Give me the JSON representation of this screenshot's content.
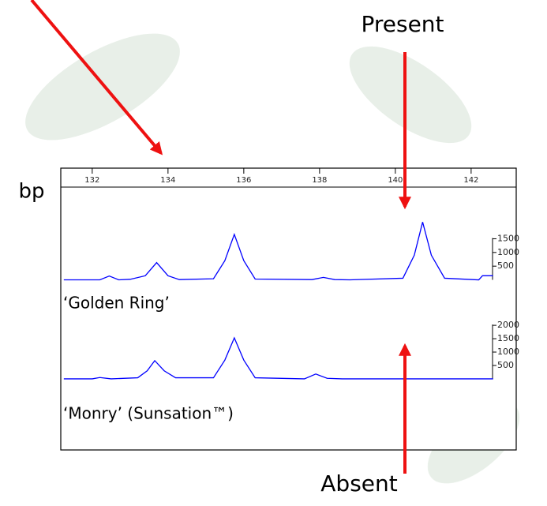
{
  "chart_data": [
    {
      "type": "line",
      "xlabel": "bp",
      "x": [
        131.25,
        132.2,
        132.45,
        132.7,
        133.0,
        133.4,
        133.7,
        134.0,
        134.3,
        135.2,
        135.5,
        135.75,
        136.0,
        136.3,
        137.8,
        138.1,
        138.4,
        138.8,
        140.2,
        140.5,
        140.72,
        140.95,
        141.3,
        142.2,
        142.3,
        142.58
      ],
      "series": [
        {
          "name": "‘Golden Ring’",
          "color": "#0000ff",
          "values": [
            0,
            0,
            140,
            0,
            20,
            150,
            630,
            150,
            10,
            40,
            700,
            1660,
            700,
            30,
            10,
            90,
            10,
            0,
            60,
            900,
            2110,
            900,
            60,
            0,
            150,
            150
          ]
        }
      ],
      "xlim": [
        131.17,
        143.19
      ],
      "xticks": [
        132,
        134,
        136,
        138,
        140,
        142
      ],
      "ylim": [
        -100,
        3300
      ],
      "yticks": [
        500,
        1000,
        1500
      ]
    },
    {
      "type": "line",
      "x": [
        131.25,
        132.0,
        132.2,
        132.5,
        133.2,
        133.45,
        133.65,
        133.9,
        134.2,
        135.2,
        135.5,
        135.75,
        136.0,
        136.3,
        137.6,
        137.9,
        138.2,
        138.6,
        142.58
      ],
      "series": [
        {
          "name": "‘Monry’ (Sunsation™)",
          "color": "#0000ff",
          "values": [
            0,
            0,
            50,
            0,
            40,
            300,
            680,
            300,
            40,
            40,
            700,
            1530,
            700,
            40,
            0,
            180,
            20,
            0,
            0
          ]
        }
      ],
      "xlim": [
        131.17,
        143.19
      ],
      "ylim": [
        -150,
        2800
      ],
      "yticks": [
        500,
        1000,
        1500,
        2000
      ]
    }
  ],
  "annotations": {
    "present": "Present",
    "absent": "Absent"
  }
}
